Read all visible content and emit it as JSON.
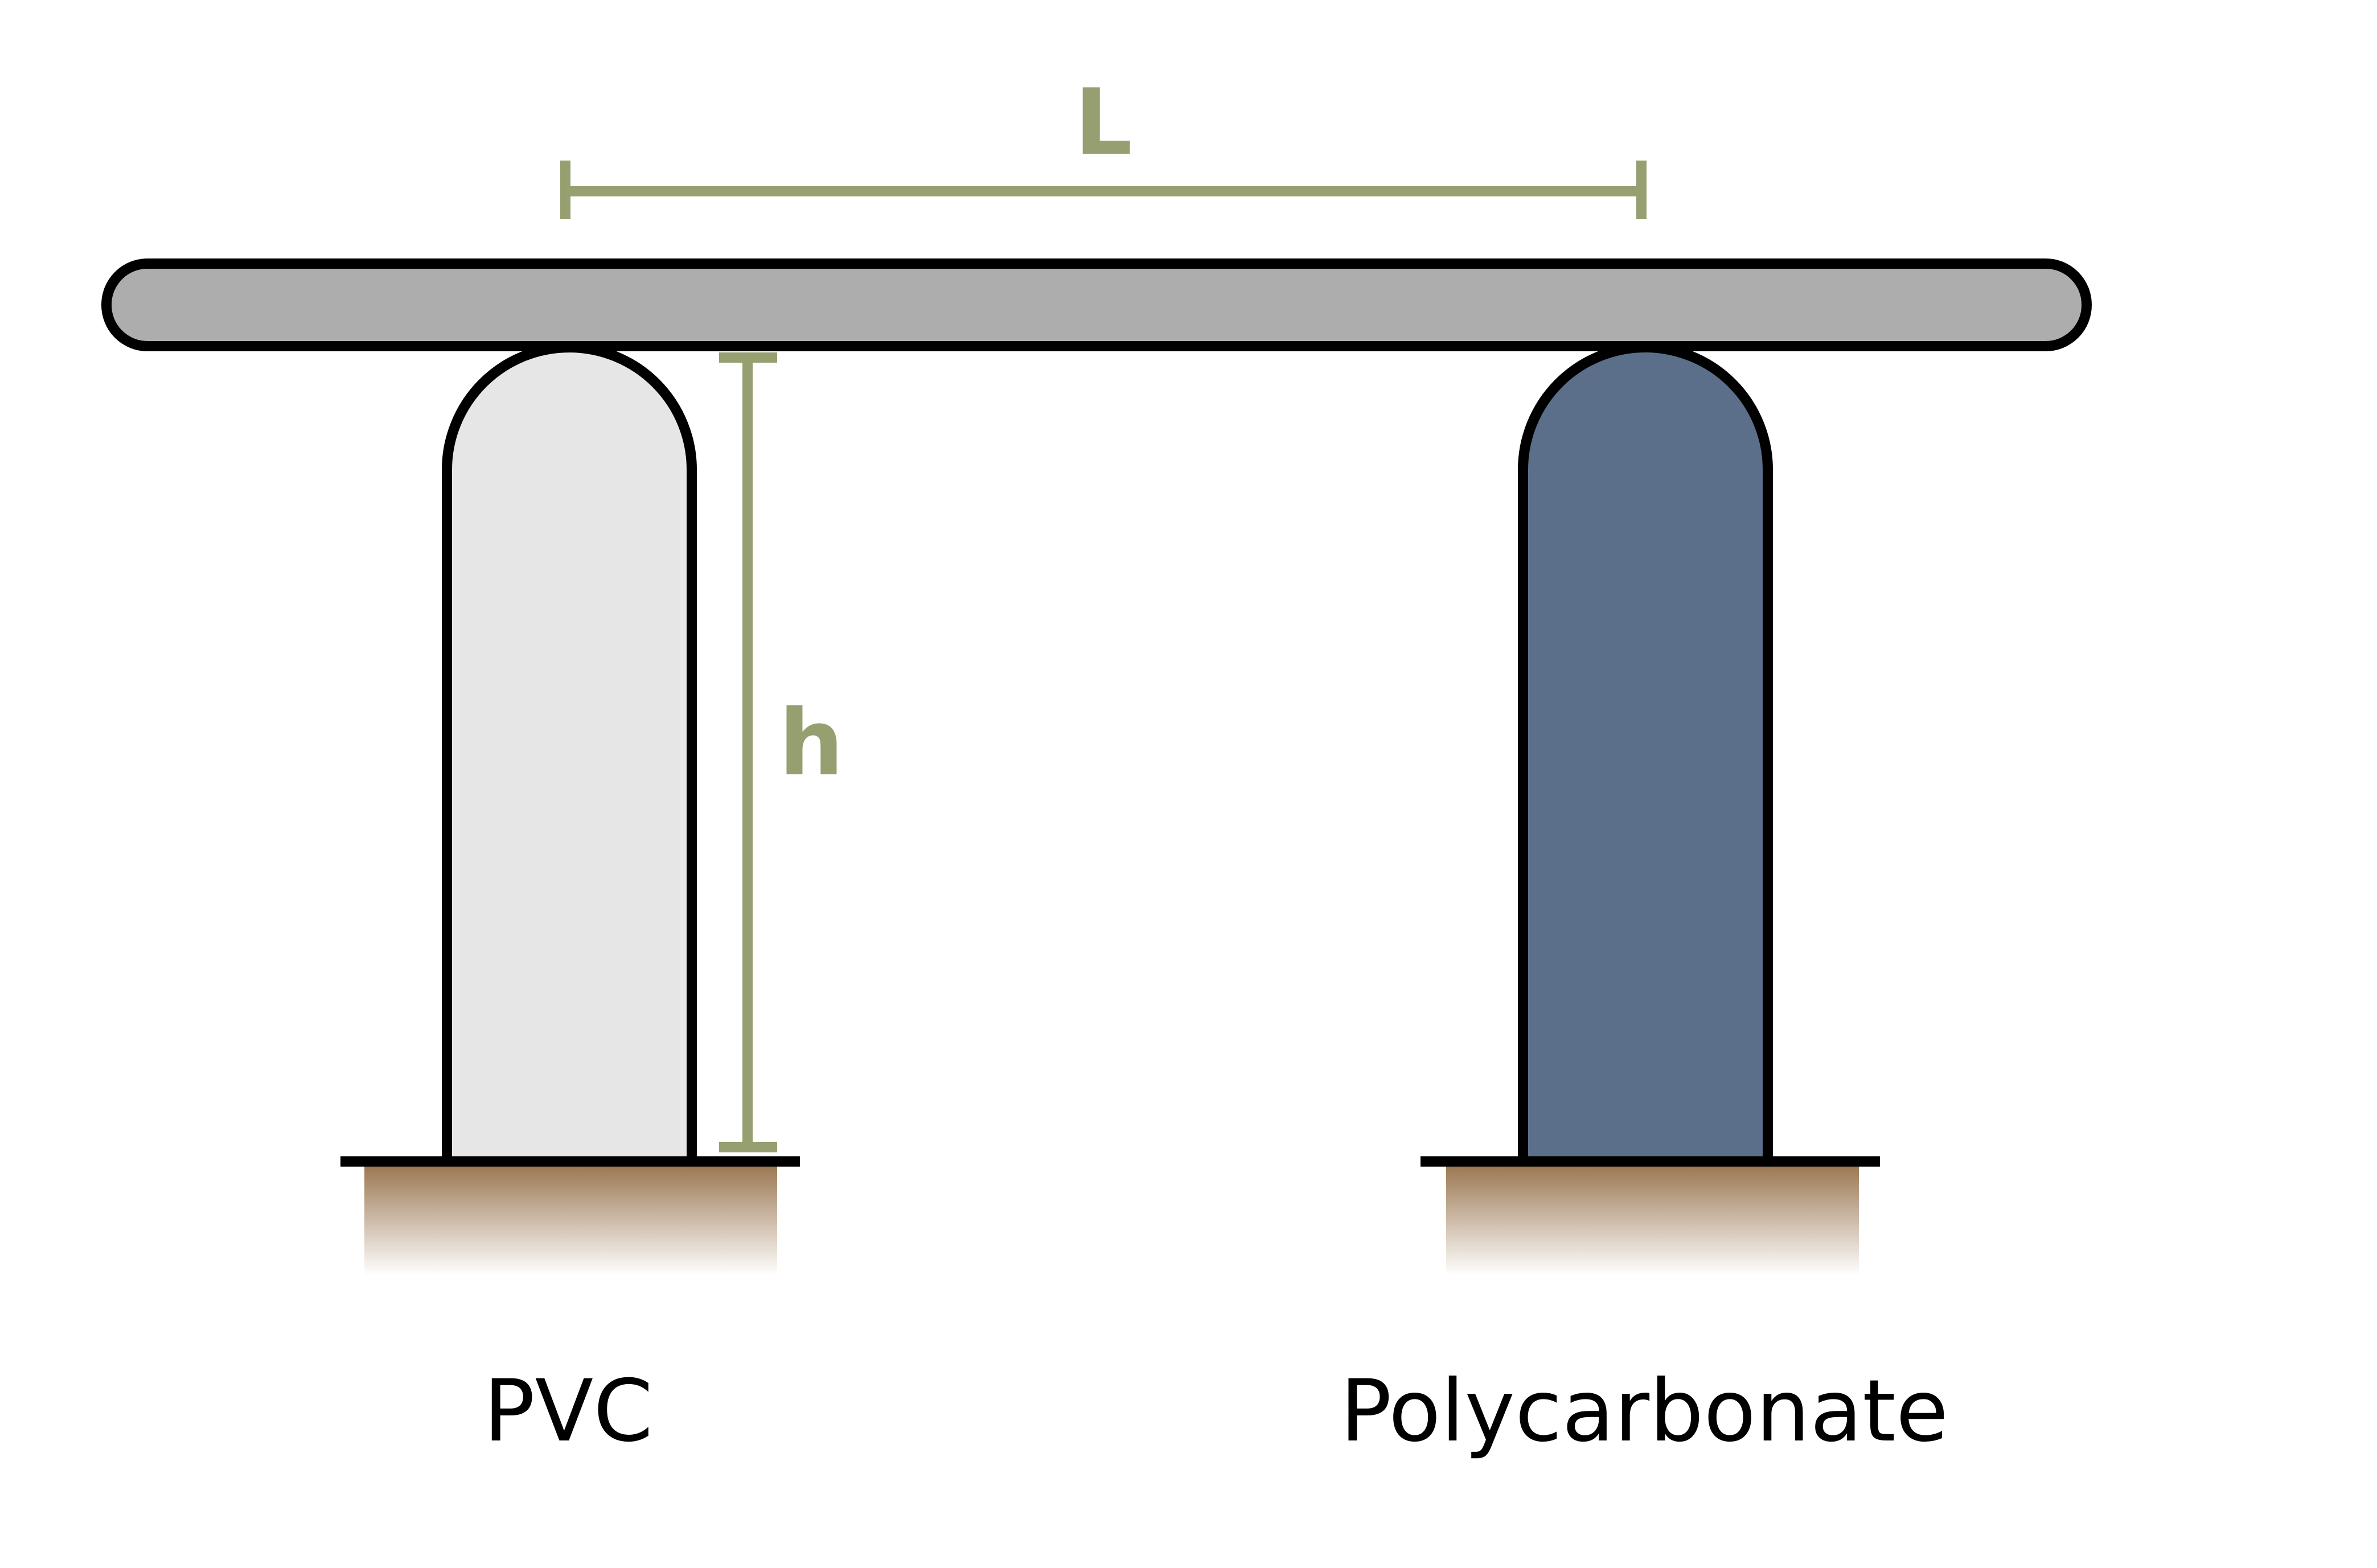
{
  "dimensions": {
    "span_label": "L",
    "height_label": "h",
    "color": "#959F6F"
  },
  "supports": [
    {
      "label": "PVC",
      "fill": "#E6E6E6"
    },
    {
      "label": "Polycarbonate",
      "fill": "#5B6E8A"
    }
  ],
  "beam": {
    "fill": "#ADADAD"
  },
  "ground": {
    "color": "#9A7650"
  }
}
